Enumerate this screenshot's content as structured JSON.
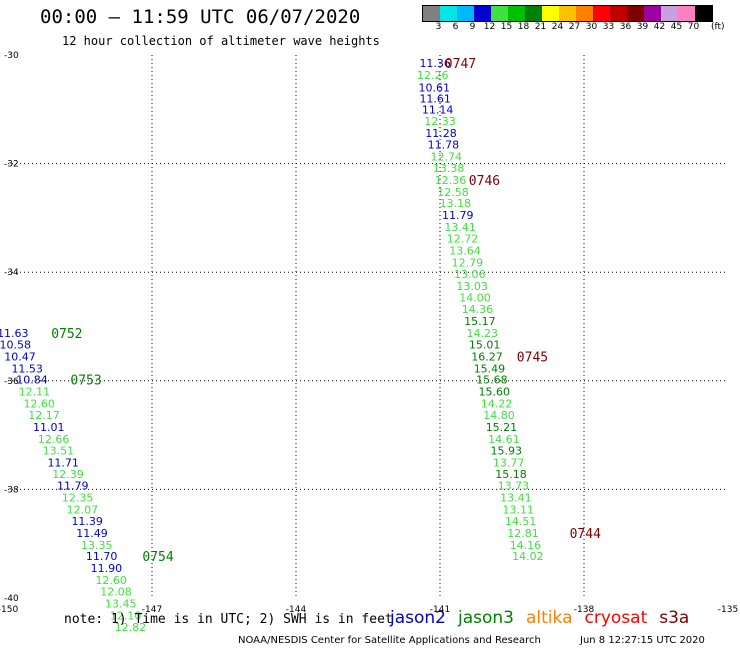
{
  "header": {
    "title": "00:00 – 11:59 UTC 06/07/2020",
    "subtitle": "12 hour collection of altimeter wave heights"
  },
  "legend": {
    "labels": [
      "3",
      "6",
      "9",
      "12",
      "15",
      "18",
      "21",
      "24",
      "27",
      "30",
      "33",
      "36",
      "39",
      "42",
      "45",
      "70"
    ],
    "unit": "(ft)",
    "colors": [
      "#808080",
      "#00e5e5",
      "#00b8ff",
      "#0000d0",
      "#40e040",
      "#00c000",
      "#008000",
      "#ffff00",
      "#ffc000",
      "#ff8000",
      "#ff0000",
      "#c00000",
      "#800000",
      "#a000a0",
      "#c8a0e0",
      "#ff80c0",
      "#000000"
    ]
  },
  "footer": {
    "note": "note: 1) Time is in UTC; 2) SWH is in feet",
    "satellites": [
      {
        "name": "jason2",
        "color": "#0000d0"
      },
      {
        "name": "jason3",
        "color": "#008000"
      },
      {
        "name": "altika",
        "color": "#ff8000"
      },
      {
        "name": "cryosat",
        "color": "#ff0000"
      },
      {
        "name": "s3a",
        "color": "#800000"
      }
    ],
    "credit": "NOAA/NESDIS Center for Satellite Applications and Research",
    "generated": "Jun  8 12:27:15 UTC 2020"
  },
  "chart_data": {
    "type": "scatter",
    "title": "12 hour collection of altimeter wave heights",
    "xlabel": "",
    "ylabel": "",
    "xlim": [
      -150,
      -135
    ],
    "ylim": [
      -40,
      -30
    ],
    "x_ticks": [
      "-150",
      "-147",
      "-144",
      "-141",
      "-138",
      "-135"
    ],
    "y_ticks": [
      "-30",
      "-32",
      "-34",
      "-36",
      "-38",
      "-40"
    ],
    "grid": "dotted",
    "colors": {
      "blue": "#0000d0",
      "light": "#40e040",
      "dark": "#008000",
      "time": "#800000",
      "timeGreen": "#008000"
    },
    "series": [
      {
        "track": "east",
        "points": [
          {
            "x": -141.1,
            "y": -30.15,
            "v": "11.36",
            "c": "blue"
          },
          {
            "x": -141.15,
            "y": -30.37,
            "v": "12.26",
            "c": "light"
          },
          {
            "x": -141.12,
            "y": -30.6,
            "v": "10.61",
            "c": "blue"
          },
          {
            "x": -141.1,
            "y": -30.8,
            "v": "11.61",
            "c": "blue"
          },
          {
            "x": -141.05,
            "y": -31.0,
            "v": "11.14",
            "c": "blue"
          },
          {
            "x": -141.0,
            "y": -31.22,
            "v": "12.33",
            "c": "light"
          },
          {
            "x": -140.98,
            "y": -31.44,
            "v": "11.28",
            "c": "blue"
          },
          {
            "x": -140.93,
            "y": -31.65,
            "v": "11.78",
            "c": "blue"
          },
          {
            "x": -140.87,
            "y": -31.87,
            "v": "12.74",
            "c": "light"
          },
          {
            "x": -140.82,
            "y": -32.08,
            "v": "13.38",
            "c": "light"
          },
          {
            "x": -140.78,
            "y": -32.3,
            "v": "12.36",
            "c": "light"
          },
          {
            "x": -140.73,
            "y": -32.52,
            "v": "12.58",
            "c": "light"
          },
          {
            "x": -140.68,
            "y": -32.73,
            "v": "13.18",
            "c": "light"
          },
          {
            "x": -140.63,
            "y": -32.95,
            "v": "11.79",
            "c": "blue"
          },
          {
            "x": -140.58,
            "y": -33.17,
            "v": "13.41",
            "c": "light"
          },
          {
            "x": -140.53,
            "y": -33.38,
            "v": "12.72",
            "c": "light"
          },
          {
            "x": -140.48,
            "y": -33.6,
            "v": "13.64",
            "c": "light"
          },
          {
            "x": -140.43,
            "y": -33.82,
            "v": "12.79",
            "c": "light"
          },
          {
            "x": -140.38,
            "y": -34.03,
            "v": "13.06",
            "c": "light"
          },
          {
            "x": -140.33,
            "y": -34.25,
            "v": "13.03",
            "c": "light"
          },
          {
            "x": -140.27,
            "y": -34.47,
            "v": "14.00",
            "c": "light"
          },
          {
            "x": -140.22,
            "y": -34.68,
            "v": "14.36",
            "c": "light"
          },
          {
            "x": -140.17,
            "y": -34.9,
            "v": "15.17",
            "c": "dark"
          },
          {
            "x": -140.12,
            "y": -35.12,
            "v": "14.23",
            "c": "light"
          },
          {
            "x": -140.07,
            "y": -35.33,
            "v": "15.01",
            "c": "dark"
          },
          {
            "x": -140.02,
            "y": -35.55,
            "v": "16.27",
            "c": "dark"
          },
          {
            "x": -139.97,
            "y": -35.77,
            "v": "15.49",
            "c": "dark"
          },
          {
            "x": -139.92,
            "y": -35.98,
            "v": "15.68",
            "c": "dark"
          },
          {
            "x": -139.87,
            "y": -36.2,
            "v": "15.60",
            "c": "dark"
          },
          {
            "x": -139.82,
            "y": -36.42,
            "v": "14.22",
            "c": "light"
          },
          {
            "x": -139.77,
            "y": -36.63,
            "v": "14.80",
            "c": "light"
          },
          {
            "x": -139.72,
            "y": -36.85,
            "v": "15.21",
            "c": "dark"
          },
          {
            "x": -139.67,
            "y": -37.07,
            "v": "14.61",
            "c": "light"
          },
          {
            "x": -139.62,
            "y": -37.28,
            "v": "15.93",
            "c": "dark"
          },
          {
            "x": -139.57,
            "y": -37.5,
            "v": "13.77",
            "c": "light"
          },
          {
            "x": -139.52,
            "y": -37.72,
            "v": "15.18",
            "c": "dark"
          },
          {
            "x": -139.47,
            "y": -37.93,
            "v": "13.73",
            "c": "light"
          },
          {
            "x": -139.42,
            "y": -38.15,
            "v": "13.41",
            "c": "light"
          },
          {
            "x": -139.37,
            "y": -38.37,
            "v": "13.11",
            "c": "light"
          },
          {
            "x": -139.32,
            "y": -38.58,
            "v": "14.51",
            "c": "light"
          },
          {
            "x": -139.27,
            "y": -38.8,
            "v": "12.81",
            "c": "light"
          },
          {
            "x": -139.22,
            "y": -39.02,
            "v": "14.16",
            "c": "light"
          },
          {
            "x": -139.17,
            "y": -39.23,
            "v": "14.02",
            "c": "light"
          }
        ]
      },
      {
        "track": "west",
        "points": [
          {
            "x": -149.9,
            "y": -35.12,
            "v": "11.63",
            "c": "blue"
          },
          {
            "x": -149.85,
            "y": -35.33,
            "v": "10.58",
            "c": "blue"
          },
          {
            "x": -149.75,
            "y": -35.55,
            "v": "10.47",
            "c": "blue"
          },
          {
            "x": -149.6,
            "y": -35.77,
            "v": "11.53",
            "c": "blue"
          },
          {
            "x": -149.5,
            "y": -35.98,
            "v": "10.84",
            "c": "blue"
          },
          {
            "x": -149.45,
            "y": -36.2,
            "v": "12.11",
            "c": "light"
          },
          {
            "x": -149.35,
            "y": -36.42,
            "v": "12.60",
            "c": "light"
          },
          {
            "x": -149.25,
            "y": -36.63,
            "v": "12.17",
            "c": "light"
          },
          {
            "x": -149.15,
            "y": -36.85,
            "v": "11.01",
            "c": "blue"
          },
          {
            "x": -149.05,
            "y": -37.07,
            "v": "12.66",
            "c": "light"
          },
          {
            "x": -148.95,
            "y": -37.28,
            "v": "13.51",
            "c": "light"
          },
          {
            "x": -148.85,
            "y": -37.5,
            "v": "11.71",
            "c": "blue"
          },
          {
            "x": -148.75,
            "y": -37.72,
            "v": "12.39",
            "c": "light"
          },
          {
            "x": -148.65,
            "y": -37.93,
            "v": "11.79",
            "c": "blue"
          },
          {
            "x": -148.55,
            "y": -38.15,
            "v": "12.35",
            "c": "light"
          },
          {
            "x": -148.45,
            "y": -38.37,
            "v": "12.07",
            "c": "light"
          },
          {
            "x": -148.35,
            "y": -38.58,
            "v": "11.39",
            "c": "blue"
          },
          {
            "x": -148.25,
            "y": -38.8,
            "v": "11.49",
            "c": "blue"
          },
          {
            "x": -148.15,
            "y": -39.02,
            "v": "13.35",
            "c": "light"
          },
          {
            "x": -148.05,
            "y": -39.23,
            "v": "11.70",
            "c": "blue"
          },
          {
            "x": -147.95,
            "y": -39.45,
            "v": "11.90",
            "c": "blue"
          },
          {
            "x": -147.85,
            "y": -39.67,
            "v": "12.60",
            "c": "light"
          },
          {
            "x": -147.75,
            "y": -39.88,
            "v": "12.08",
            "c": "light"
          },
          {
            "x": -147.65,
            "y": -40.1,
            "v": "13.45",
            "c": "light"
          },
          {
            "x": -147.55,
            "y": -40.32,
            "v": "12.10",
            "c": "light"
          },
          {
            "x": -147.45,
            "y": -40.53,
            "v": "12.82",
            "c": "light"
          }
        ]
      }
    ],
    "time_labels": [
      {
        "text": "0747",
        "x": -140.9,
        "y": -30.15,
        "c": "time"
      },
      {
        "text": "0746",
        "x": -140.4,
        "y": -32.3,
        "c": "time"
      },
      {
        "text": "0745",
        "x": -139.4,
        "y": -35.55,
        "c": "time"
      },
      {
        "text": "0744",
        "x": -138.3,
        "y": -38.8,
        "c": "time"
      },
      {
        "text": "0752",
        "x": -149.1,
        "y": -35.12,
        "c": "timeGreen"
      },
      {
        "text": "0753",
        "x": -148.7,
        "y": -35.98,
        "c": "timeGreen"
      },
      {
        "text": "0754",
        "x": -147.2,
        "y": -39.23,
        "c": "timeGreen"
      }
    ]
  }
}
